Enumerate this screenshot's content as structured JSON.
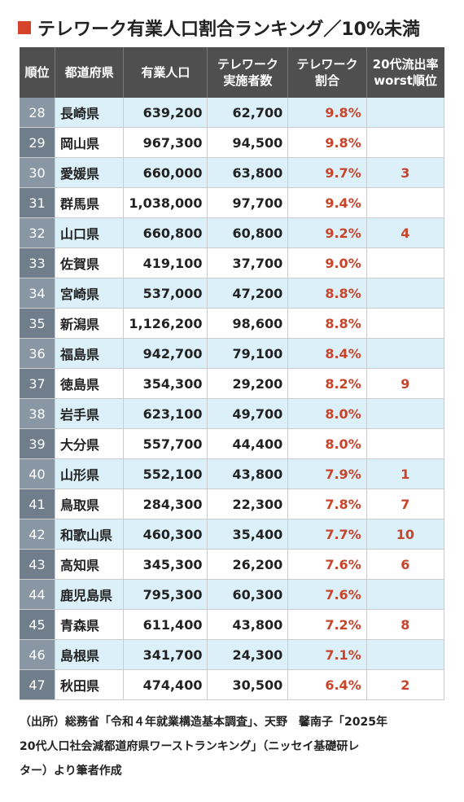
{
  "title": "テレワーク有業人口割合ランキング／10%未満",
  "table": {
    "headers": [
      [
        "順位"
      ],
      [
        "都道府県"
      ],
      [
        "有業人口"
      ],
      [
        "テレワーク",
        "実施者数"
      ],
      [
        "テレワーク",
        "割合"
      ],
      [
        "20代流出率",
        "worst順位"
      ]
    ],
    "rows": [
      [
        "28",
        "長崎県",
        "639,200",
        "62,700",
        "9.8%",
        null
      ],
      [
        "29",
        "岡山県",
        "967,300",
        "94,500",
        "9.8%",
        null
      ],
      [
        "30",
        "愛媛県",
        "660,000",
        "63,800",
        "9.7%",
        "3"
      ],
      [
        "31",
        "群馬県",
        "1,038,000",
        "97,700",
        "9.4%",
        null
      ],
      [
        "32",
        "山口県",
        "660,800",
        "60,800",
        "9.2%",
        "4"
      ],
      [
        "33",
        "佐賀県",
        "419,100",
        "37,700",
        "9.0%",
        null
      ],
      [
        "34",
        "宮崎県",
        "537,000",
        "47,200",
        "8.8%",
        null
      ],
      [
        "35",
        "新潟県",
        "1,126,200",
        "98,600",
        "8.8%",
        null
      ],
      [
        "36",
        "福島県",
        "942,700",
        "79,100",
        "8.4%",
        null
      ],
      [
        "37",
        "徳島県",
        "354,300",
        "29,200",
        "8.2%",
        "9"
      ],
      [
        "38",
        "岩手県",
        "623,100",
        "49,700",
        "8.0%",
        null
      ],
      [
        "39",
        "大分県",
        "557,700",
        "44,400",
        "8.0%",
        null
      ],
      [
        "40",
        "山形県",
        "552,100",
        "43,800",
        "7.9%",
        "1"
      ],
      [
        "41",
        "鳥取県",
        "284,300",
        "22,300",
        "7.8%",
        "7"
      ],
      [
        "42",
        "和歌山県",
        "460,300",
        "35,400",
        "7.7%",
        "10"
      ],
      [
        "43",
        "高知県",
        "345,300",
        "26,200",
        "7.6%",
        "6"
      ],
      [
        "44",
        "鹿児島県",
        "795,300",
        "60,300",
        "7.6%",
        null
      ],
      [
        "45",
        "青森県",
        "611,400",
        "43,800",
        "7.2%",
        "8"
      ],
      [
        "46",
        "島根県",
        "341,700",
        "24,300",
        "7.1%",
        null
      ],
      [
        "47",
        "秋田県",
        "474,400",
        "30,500",
        "6.4%",
        "2"
      ]
    ]
  },
  "footnote": [
    "（出所）総務省「令和４年就業構造基本調査」、天野　馨南子「2025年",
    "20代人口社会減都道府県ワーストランキング」（ニッセイ基礎研レ",
    "ター）より筆者作成"
  ]
}
